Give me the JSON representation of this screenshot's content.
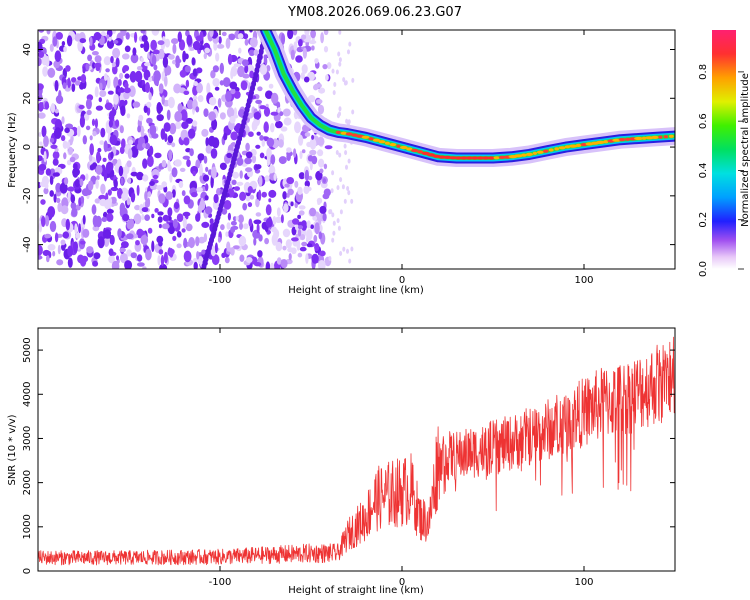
{
  "title": "YM08.2026.069.06.23.G07",
  "chart_data": [
    {
      "type": "heatmap",
      "name": "spectrogram",
      "xlabel": "Height of straight line (km)",
      "ylabel": "Frequency (Hz)",
      "xlim": [
        -200,
        150
      ],
      "ylim": [
        -50,
        48
      ],
      "x_ticks": [
        -100,
        0,
        100
      ],
      "y_ticks": [
        40,
        20,
        0,
        -20,
        -40
      ],
      "noise_region_x": [
        -200,
        -40
      ],
      "signal_track": {
        "x": [
          -75,
          -70,
          -65,
          -60,
          -55,
          -50,
          -45,
          -40,
          -35,
          -30,
          -20,
          -10,
          0,
          10,
          20,
          30,
          40,
          50,
          60,
          70,
          80,
          90,
          100,
          110,
          120,
          130,
          140,
          150
        ],
        "y": [
          48,
          40,
          30,
          23,
          17,
          12,
          9,
          7,
          6,
          5.5,
          4,
          2,
          0,
          -2,
          -4,
          -4.5,
          -4.5,
          -4.5,
          -4,
          -3,
          -1.5,
          0,
          1,
          2,
          3,
          3.5,
          4,
          4.5
        ]
      },
      "colorbar": {
        "label": "Normalized spectral amplitude",
        "ticks": [
          0.0,
          0.2,
          0.4,
          0.6,
          0.8
        ],
        "range": [
          0,
          0.97
        ]
      }
    },
    {
      "type": "line",
      "name": "snr",
      "xlabel": "Height of straight line (km)",
      "ylabel": "SNR (10 * v/v)",
      "xlim": [
        -200,
        150
      ],
      "ylim": [
        0,
        5500
      ],
      "x_ticks": [
        -100,
        0,
        100
      ],
      "y_ticks": [
        0,
        1000,
        2000,
        3000,
        4000,
        5000
      ],
      "color": "#ee3333",
      "trend": {
        "x": [
          -200,
          -150,
          -100,
          -50,
          -35,
          -30,
          -25,
          -20,
          -15,
          -10,
          -5,
          0,
          5,
          10,
          15,
          20,
          30,
          40,
          50,
          60,
          70,
          80,
          90,
          100,
          110,
          120,
          130,
          140,
          150
        ],
        "y": [
          300,
          300,
          320,
          400,
          400,
          800,
          1000,
          1200,
          1600,
          1700,
          1750,
          1800,
          1850,
          1200,
          1100,
          2600,
          2600,
          2700,
          2800,
          2900,
          3050,
          3200,
          3400,
          3600,
          3800,
          3900,
          4050,
          4250,
          4350
        ]
      }
    }
  ]
}
